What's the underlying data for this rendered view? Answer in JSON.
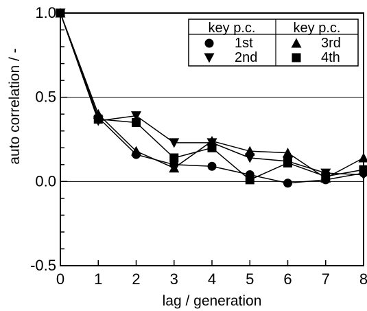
{
  "chart_data": {
    "type": "line",
    "xlabel": "lag / generation",
    "ylabel": "auto correlation / -",
    "xlim": [
      0,
      8
    ],
    "ylim": [
      -0.5,
      1.0
    ],
    "x_ticks": [
      0,
      1,
      2,
      3,
      4,
      5,
      6,
      7,
      8
    ],
    "y_ticks": [
      -0.5,
      0.0,
      0.5,
      1.0
    ],
    "x_tick_labels": [
      "0",
      "1",
      "2",
      "3",
      "4",
      "5",
      "6",
      "7",
      "8"
    ],
    "y_tick_labels": [
      "-0.5",
      "0.0",
      "0.5",
      "1.0"
    ],
    "horizontal_gridlines": [
      0.0,
      0.5
    ],
    "legend_position": "top-right",
    "legend_headers": [
      "key p.c.",
      "key p.c."
    ],
    "series": [
      {
        "name": "1st",
        "marker": "circle",
        "x": [
          0,
          1,
          2,
          3,
          4,
          5,
          6,
          7,
          8
        ],
        "values": [
          1.0,
          0.38,
          0.16,
          0.1,
          0.09,
          0.04,
          -0.01,
          0.01,
          0.05
        ]
      },
      {
        "name": "2nd",
        "marker": "triangle-down",
        "x": [
          0,
          1,
          2,
          3,
          4,
          5,
          6,
          7,
          8
        ],
        "values": [
          1.0,
          0.36,
          0.39,
          0.23,
          0.23,
          0.14,
          0.12,
          0.05,
          0.04
        ]
      },
      {
        "name": "3rd",
        "marker": "triangle-up",
        "x": [
          0,
          1,
          2,
          3,
          4,
          5,
          6,
          7,
          8
        ],
        "values": [
          1.0,
          0.4,
          0.18,
          0.08,
          0.24,
          0.18,
          0.17,
          0.02,
          0.14
        ]
      },
      {
        "name": "4th",
        "marker": "square",
        "x": [
          0,
          1,
          2,
          3,
          4,
          5,
          6,
          7,
          8
        ],
        "values": [
          1.0,
          0.37,
          0.35,
          0.14,
          0.2,
          0.01,
          0.11,
          0.03,
          0.07
        ]
      }
    ]
  }
}
